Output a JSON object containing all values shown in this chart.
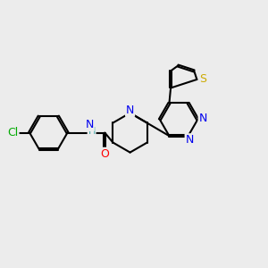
{
  "bg_color": "#ececec",
  "bond_color": "#000000",
  "bond_width": 1.5,
  "atom_colors": {
    "N": "#0000ee",
    "O": "#ff0000",
    "S": "#ccaa00",
    "Cl": "#00aa00",
    "H": "#44aaaa",
    "C": "#000000"
  },
  "font_size": 9,
  "fig_width": 3.0,
  "fig_height": 3.0,
  "dpi": 100
}
